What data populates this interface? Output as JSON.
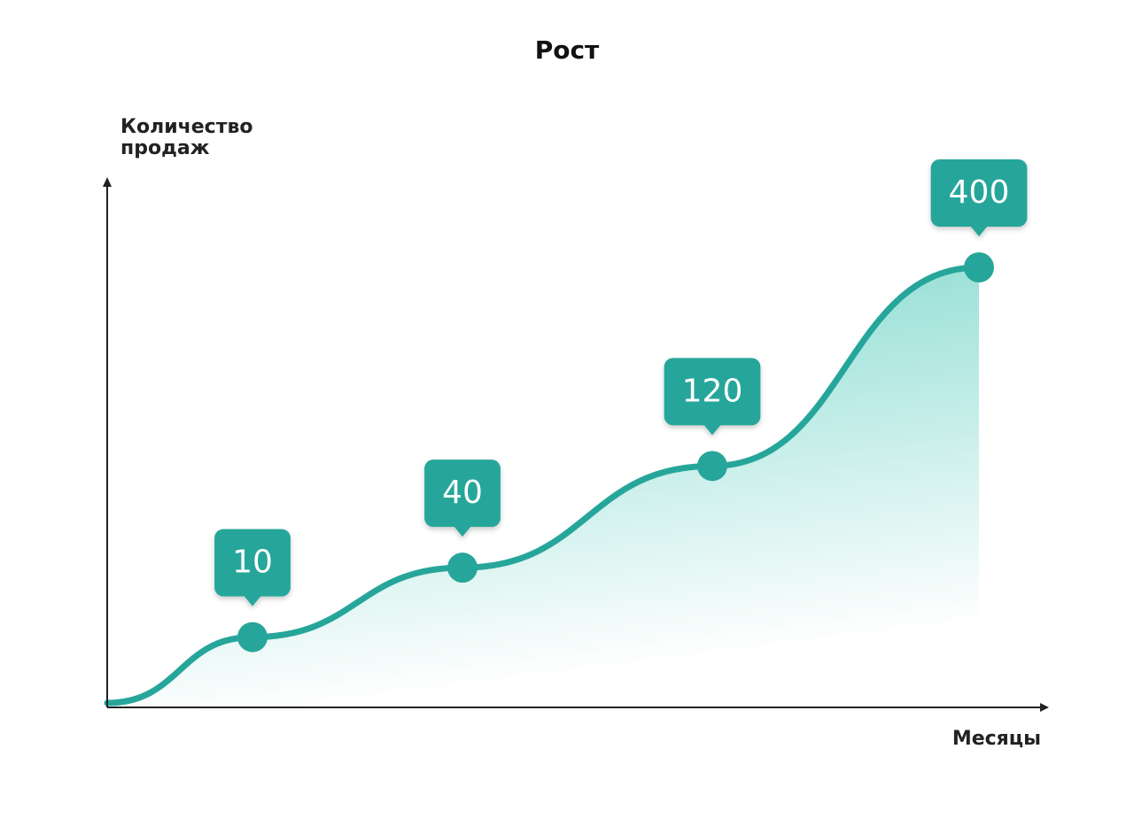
{
  "chart_data": {
    "type": "line",
    "title": "Рост",
    "y_label": "Количество продаж",
    "x_label": "Месяцы",
    "categories": [
      null,
      null,
      null,
      null
    ],
    "values": [
      10,
      40,
      120,
      400
    ],
    "color": "#26a69a"
  }
}
